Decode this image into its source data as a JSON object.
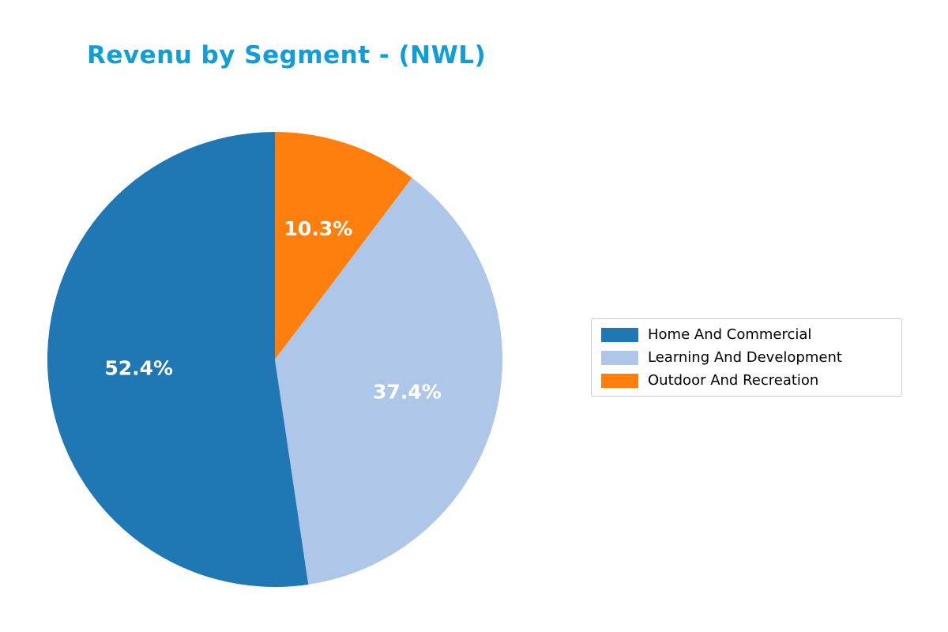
{
  "title": "Revenu by Segment - (NWL)",
  "title_color": "#0f9ed8",
  "chart_data": {
    "type": "pie",
    "title": "Revenu by Segment - (NWL)",
    "start_angle": 90,
    "counterclockwise": true,
    "legend_position": "right",
    "slices": [
      {
        "label": "Home And Commercial",
        "value": 52.4,
        "pct_label": "52.4%",
        "color": "#1f77b4"
      },
      {
        "label": "Learning And Development",
        "value": 37.4,
        "pct_label": "37.4%",
        "color": "#aec7e8"
      },
      {
        "label": "Outdoor And Recreation",
        "value": 10.3,
        "pct_label": "10.3%",
        "color": "#ff7f0e"
      }
    ]
  },
  "legend": {
    "items": [
      {
        "label": "Home And Commercial",
        "color": "#1f77b4"
      },
      {
        "label": "Learning And Development",
        "color": "#aec7e8"
      },
      {
        "label": "Outdoor And Recreation",
        "color": "#ff7f0e"
      }
    ]
  }
}
